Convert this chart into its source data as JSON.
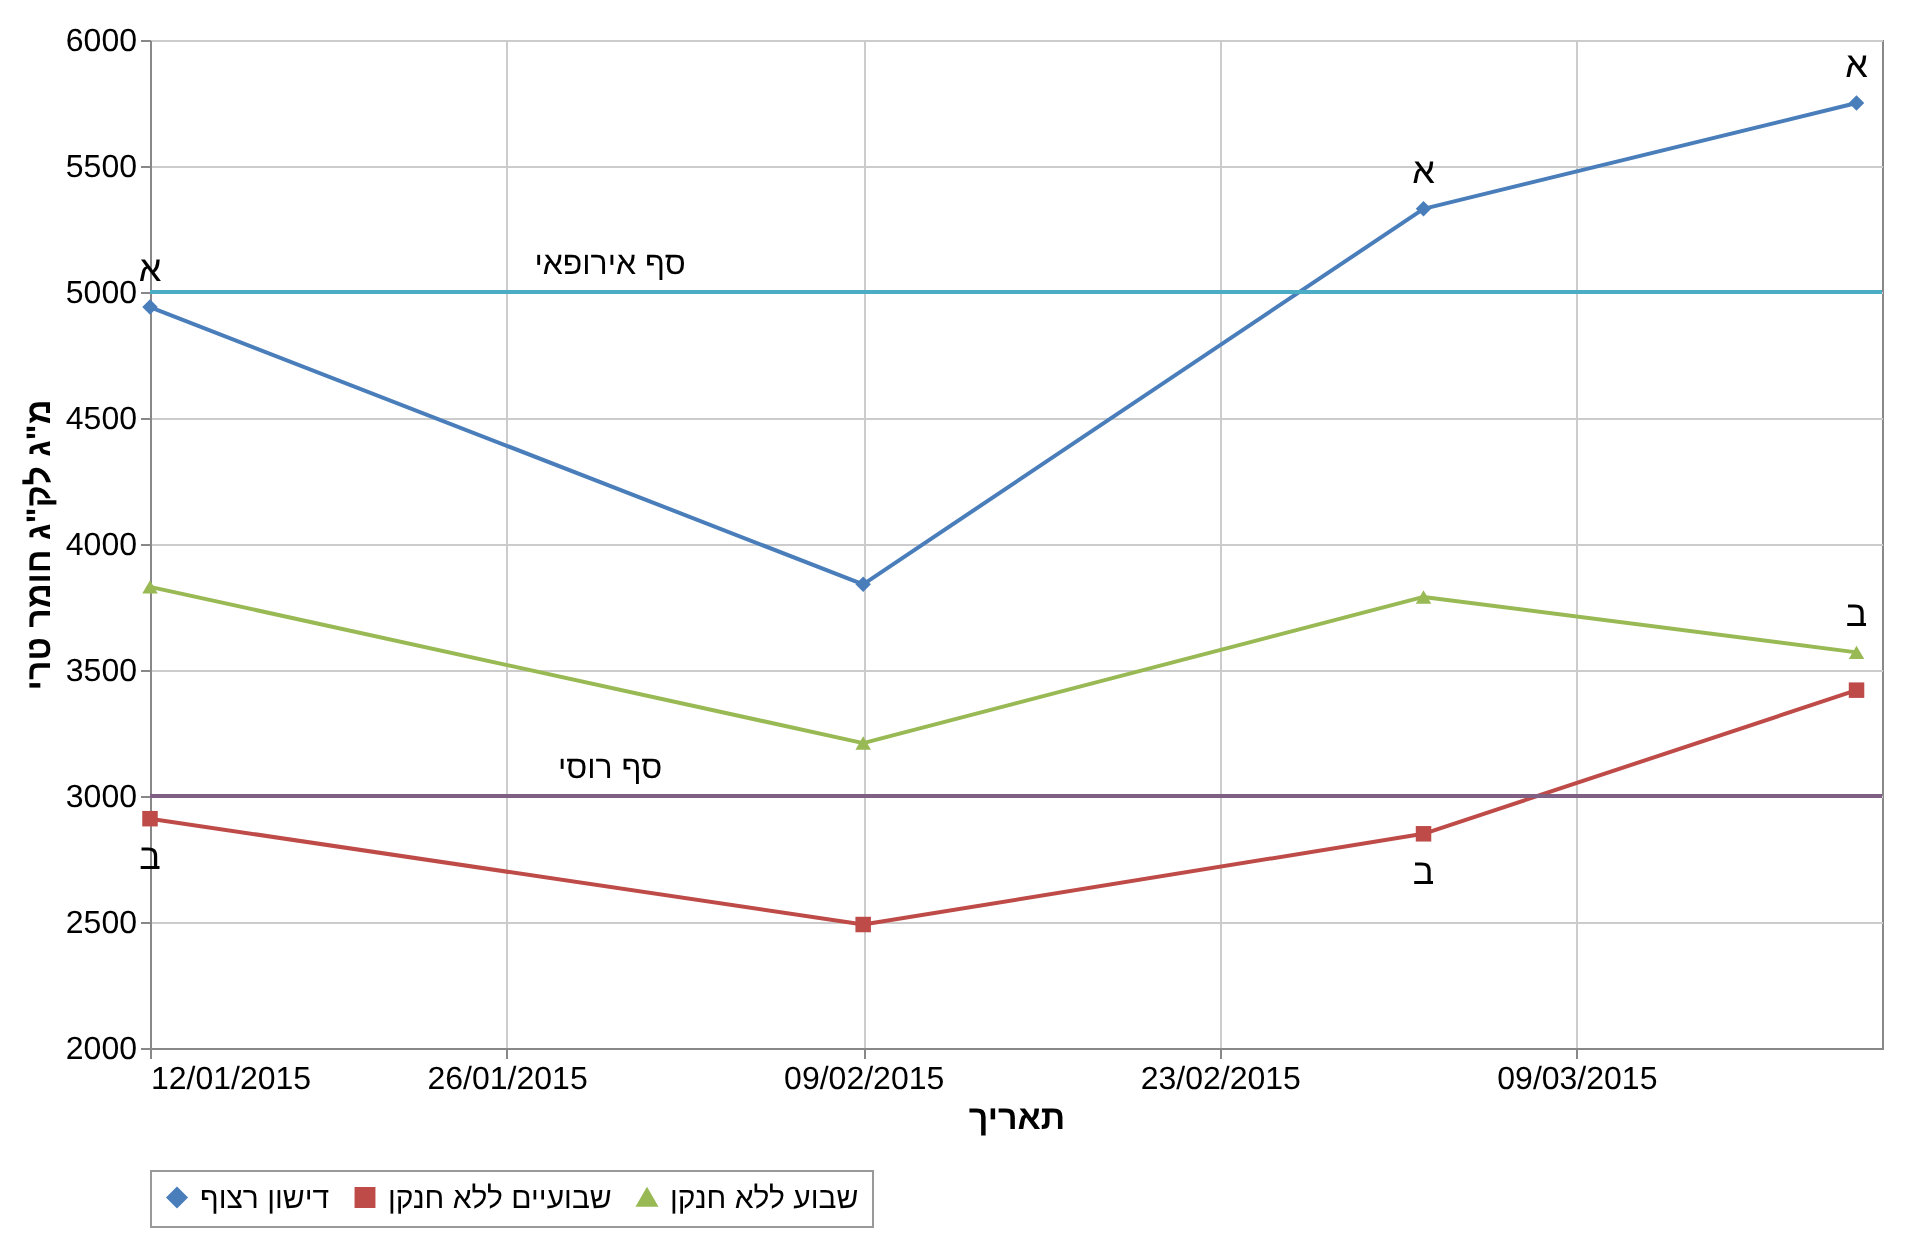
{
  "chart_data": {
    "type": "line",
    "xlabel": "תאריך",
    "ylabel": "מ\"ג לק\"ג חומר טרי",
    "x": [
      "2015-01-12",
      "2015-02-09",
      "2015-03-03",
      "2015-03-20"
    ],
    "series": [
      {
        "name": "דישון רצוף",
        "color": "#4a7ebb",
        "marker": "diamond",
        "values": [
          4940,
          3840,
          5330,
          5750
        ]
      },
      {
        "name": "שבועיים ללא חנקן",
        "color": "#be4b48",
        "marker": "square",
        "values": [
          2910,
          2490,
          2850,
          3420
        ]
      },
      {
        "name": "שבוע ללא חנקן",
        "color": "#98b954",
        "marker": "triangle",
        "values": [
          3830,
          3210,
          3790,
          3570
        ]
      }
    ],
    "ref_lines": [
      {
        "axis": "y",
        "value": 5000,
        "label": "סף אירופאי",
        "color": "#4bacc6"
      },
      {
        "axis": "y",
        "value": 3000,
        "label": "סף רוסי",
        "color": "#7f6084"
      }
    ],
    "annotations": [
      {
        "text": "א",
        "x": "2015-01-12",
        "y": 4940
      },
      {
        "text": "ב",
        "x": "2015-01-12",
        "y": 2910
      },
      {
        "text": "א",
        "x": "2015-03-03",
        "y": 5330
      },
      {
        "text": "ב",
        "x": "2015-03-03",
        "y": 2850
      },
      {
        "text": "א",
        "x": "2015-03-20",
        "y": 5750
      },
      {
        "text": "ב",
        "x": "2015-03-20",
        "y": 3570
      }
    ],
    "xlim": [
      "2015-01-12",
      "2015-03-21"
    ],
    "xticks": [
      {
        "value": "2015-01-12",
        "label": "12/01/2015"
      },
      {
        "value": "2015-01-26",
        "label": "26/01/2015"
      },
      {
        "value": "2015-02-09",
        "label": "09/02/2015"
      },
      {
        "value": "2015-02-23",
        "label": "23/02/2015"
      },
      {
        "value": "2015-03-09",
        "label": "09/03/2015"
      }
    ],
    "ylim": [
      2000,
      6000
    ],
    "yticks": [
      2000,
      2500,
      3000,
      3500,
      4000,
      4500,
      5000,
      5500,
      6000
    ],
    "grid": true,
    "legend": "bottom",
    "line_style": "solid"
  }
}
